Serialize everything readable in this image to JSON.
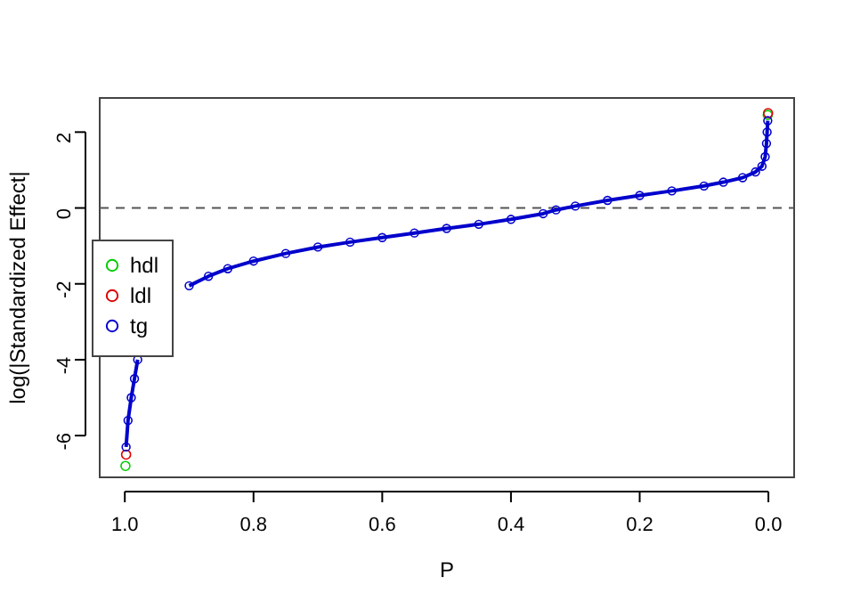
{
  "chart_data": {
    "type": "line",
    "xlabel": "P",
    "ylabel": "log(|Standardized Effect|",
    "xlim": [
      1.039,
      -0.04
    ],
    "xticks": [
      {
        "value": 1,
        "label": "1.0"
      },
      0.8,
      0.6,
      0.4,
      0.2,
      {
        "value": 0,
        "label": "0.0"
      }
    ],
    "ylim": [
      -7.1,
      2.9
    ],
    "yticks": [
      -6,
      -4,
      -2,
      0,
      2
    ],
    "grid": false,
    "legend": "left",
    "marker": "circle",
    "ref_lines": [
      {
        "axis": "y",
        "value": 0,
        "line_style": "dashed",
        "color": "#555555"
      }
    ],
    "series": [
      {
        "name": "hdl",
        "type": "scatter",
        "color": "#00cc00",
        "x": [
          0.999,
          0.001
        ],
        "values": [
          -6.8,
          2.45
        ]
      },
      {
        "name": "ldl",
        "type": "scatter",
        "color": "#dd0000",
        "x": [
          0.998,
          0.0005
        ],
        "values": [
          -6.5,
          2.5
        ]
      },
      {
        "name": "tg",
        "color": "#0000cc",
        "x": [
          0.998,
          0.995,
          0.99,
          0.985,
          0.98,
          0.97,
          0.96,
          0.95,
          0.93,
          0.9,
          0.87,
          0.84,
          0.8,
          0.75,
          0.7,
          0.65,
          0.6,
          0.55,
          0.5,
          0.45,
          0.4,
          0.35,
          0.33,
          0.3,
          0.25,
          0.2,
          0.15,
          0.1,
          0.07,
          0.04,
          0.02,
          0.01,
          0.005,
          0.003,
          0.002,
          0.001
        ],
        "values": [
          -6.3,
          -5.6,
          -5.0,
          -4.5,
          -4.0,
          null,
          null,
          null,
          null,
          -2.05,
          -1.8,
          -1.6,
          -1.4,
          -1.2,
          -1.03,
          -0.9,
          -0.78,
          -0.66,
          -0.54,
          -0.43,
          -0.3,
          -0.15,
          -0.05,
          0.05,
          0.2,
          0.33,
          0.45,
          0.58,
          0.68,
          0.8,
          0.95,
          1.1,
          1.35,
          1.7,
          2.0,
          2.3
        ]
      }
    ]
  }
}
